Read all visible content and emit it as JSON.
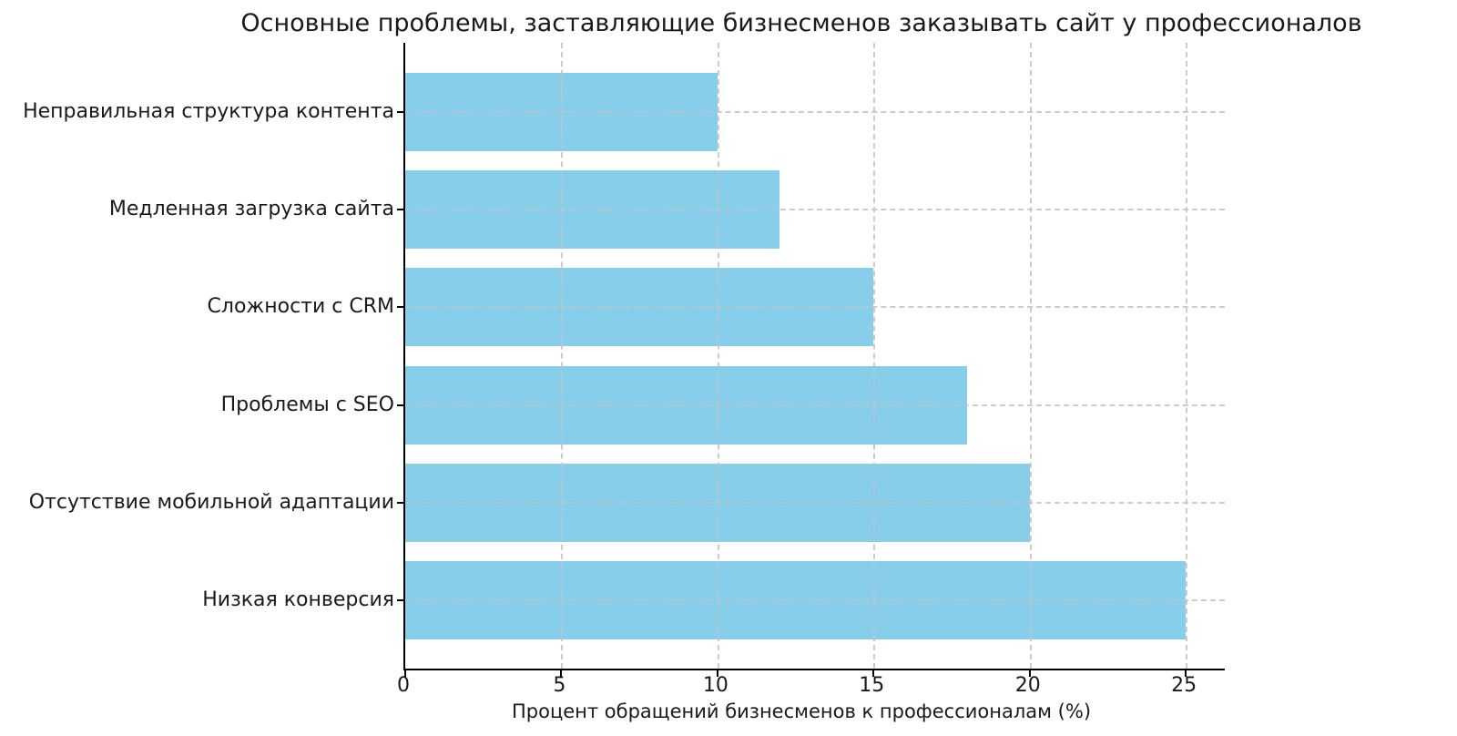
{
  "chart_data": {
    "type": "bar",
    "orientation": "horizontal",
    "title": "Основные проблемы, заставляющие бизнесменов заказывать сайт у профессионалов",
    "xlabel": "Процент обращений бизнесменов к профессионалам (%)",
    "ylabel": "",
    "categories": [
      "Неправильная структура контента",
      "Медленная загрузка сайта",
      "Сложности с CRM",
      "Проблемы с SEO",
      "Отсутствие мобильной адаптации",
      "Низкая конверсия"
    ],
    "values": [
      10,
      12,
      15,
      18,
      20,
      25
    ],
    "xticks": [
      0,
      5,
      10,
      15,
      20,
      25
    ],
    "xlim": [
      0,
      26.25
    ],
    "bar_color": "#87CEEB",
    "grid": {
      "visible": true,
      "style": "dashed",
      "color": "#c3c3c3",
      "axis": "both",
      "over_bars": true
    },
    "legend_position": "none"
  }
}
